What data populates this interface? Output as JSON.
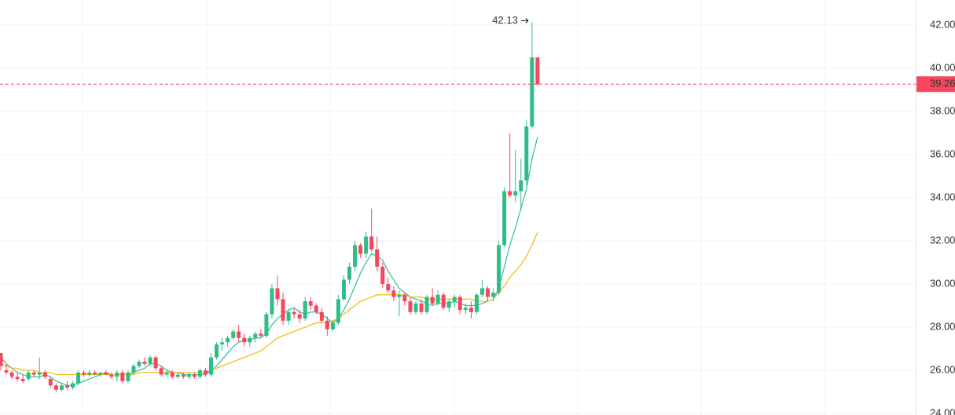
{
  "chart_data": {
    "type": "candlestick",
    "open": [
      26.8,
      26.0,
      25.9,
      25.7,
      25.6,
      25.6,
      25.9,
      25.8,
      25.9,
      25.6,
      25.3,
      25.1,
      25.3,
      25.2,
      25.4,
      25.9,
      25.8,
      25.9,
      25.8,
      25.9,
      25.8,
      25.7,
      25.9,
      25.5,
      25.9,
      26.2,
      26.4,
      26.3,
      26.6,
      26.1,
      25.8,
      25.9,
      25.7,
      25.8,
      25.7,
      25.8,
      25.7,
      26.0,
      25.8,
      26.6,
      27.2,
      27.3,
      27.5,
      27.8,
      27.5,
      27.3,
      27.5,
      27.7,
      27.6,
      28.6,
      29.8,
      29.3,
      28.3,
      28.7,
      28.6,
      28.4,
      29.2,
      29.0,
      28.7,
      28.3,
      27.9,
      28.2,
      29.3,
      30.2,
      30.8,
      31.8,
      31.4,
      32.2,
      31.6,
      30.8,
      30.0,
      29.7,
      29.4,
      29.5,
      29.2,
      28.7,
      29.1,
      28.7,
      29.4,
      29.1,
      29.5,
      28.9,
      29.2,
      29.4,
      28.8,
      28.9,
      28.7,
      29.5,
      29.8,
      29.4,
      29.6,
      31.8,
      34.3,
      34.1,
      34.3,
      34.8,
      37.3,
      40.5
    ],
    "high": [
      26.8,
      26.3,
      26.0,
      25.9,
      25.8,
      26.0,
      26.0,
      26.6,
      26.0,
      25.7,
      25.4,
      25.4,
      25.5,
      25.5,
      26.0,
      26.0,
      26.0,
      26.0,
      25.9,
      26.0,
      25.9,
      26.0,
      26.0,
      26.0,
      26.3,
      26.5,
      26.6,
      26.7,
      26.7,
      26.2,
      26.0,
      26.0,
      25.9,
      25.9,
      25.9,
      25.9,
      26.1,
      26.1,
      26.8,
      27.3,
      27.5,
      27.6,
      27.9,
      28.1,
      27.7,
      27.6,
      27.8,
      27.9,
      28.7,
      30.0,
      30.4,
      29.6,
      28.8,
      28.9,
      28.8,
      29.4,
      29.4,
      29.1,
      28.9,
      28.5,
      28.3,
      29.5,
      30.4,
      31.0,
      32.0,
      31.9,
      32.4,
      33.5,
      32.2,
      31.0,
      30.3,
      29.9,
      29.7,
      29.6,
      29.4,
      29.2,
      29.3,
      29.5,
      29.8,
      29.7,
      29.6,
      29.3,
      29.5,
      29.5,
      29.1,
      29.2,
      29.6,
      30.2,
      29.9,
      29.8,
      32.0,
      34.5,
      37.0,
      36.2,
      35.8,
      37.6,
      42.13,
      40.5
    ],
    "low": [
      26.0,
      25.8,
      25.6,
      25.5,
      25.4,
      25.5,
      25.7,
      25.6,
      25.6,
      25.2,
      25.0,
      25.0,
      25.1,
      25.1,
      25.3,
      25.7,
      25.7,
      25.8,
      25.7,
      25.8,
      25.6,
      25.5,
      25.4,
      25.4,
      25.8,
      26.1,
      26.2,
      26.2,
      26.0,
      25.7,
      25.7,
      25.6,
      25.6,
      25.6,
      25.6,
      25.6,
      25.6,
      25.7,
      25.7,
      26.5,
      26.9,
      27.1,
      27.4,
      27.3,
      27.1,
      27.1,
      27.3,
      27.5,
      27.5,
      28.4,
      29.0,
      28.1,
      28.1,
      28.4,
      28.2,
      28.3,
      28.8,
      28.6,
      28.2,
      27.6,
      27.8,
      28.1,
      29.2,
      30.0,
      30.6,
      31.2,
      31.2,
      31.5,
      30.6,
      29.8,
      29.6,
      29.2,
      28.5,
      29.0,
      28.6,
      28.6,
      28.6,
      28.6,
      29.0,
      29.0,
      28.8,
      28.7,
      28.9,
      28.6,
      28.6,
      28.4,
      28.6,
      29.4,
      29.2,
      29.2,
      29.5,
      31.7,
      34.0,
      33.8,
      33.4,
      34.6,
      37.2,
      39.2
    ],
    "close": [
      26.2,
      25.9,
      25.7,
      25.6,
      25.5,
      25.9,
      25.8,
      25.9,
      25.7,
      25.3,
      25.1,
      25.3,
      25.2,
      25.4,
      25.9,
      25.8,
      25.9,
      25.8,
      25.9,
      25.8,
      25.7,
      25.9,
      25.5,
      25.9,
      26.2,
      26.4,
      26.3,
      26.6,
      26.1,
      25.8,
      25.9,
      25.7,
      25.8,
      25.7,
      25.8,
      25.7,
      26.0,
      25.8,
      26.6,
      27.2,
      27.3,
      27.5,
      27.8,
      27.5,
      27.3,
      27.5,
      27.7,
      27.6,
      28.6,
      29.8,
      29.3,
      28.3,
      28.7,
      28.6,
      28.4,
      29.2,
      29.0,
      28.7,
      28.3,
      27.9,
      28.2,
      29.3,
      30.2,
      30.8,
      31.8,
      31.4,
      32.2,
      31.6,
      30.8,
      30.0,
      29.7,
      29.4,
      29.5,
      29.2,
      28.7,
      29.1,
      28.7,
      29.4,
      29.1,
      29.5,
      28.9,
      29.2,
      29.4,
      28.8,
      28.9,
      28.7,
      29.5,
      29.8,
      29.4,
      29.6,
      31.8,
      34.3,
      34.1,
      34.3,
      34.8,
      37.3,
      40.5,
      39.26
    ],
    "up_color": "#2ebd85",
    "down_color": "#f6465d",
    "series": [
      {
        "color": "#2bbfa0",
        "values": [
          26.6,
          26.3,
          26.1,
          25.9,
          25.8,
          25.7,
          25.7,
          25.7,
          25.8,
          25.7,
          25.5,
          25.4,
          25.3,
          25.3,
          25.4,
          25.5,
          25.6,
          25.7,
          25.8,
          25.9,
          25.8,
          25.8,
          25.8,
          25.8,
          25.9,
          26.0,
          26.1,
          26.3,
          26.3,
          26.2,
          26.0,
          25.9,
          25.9,
          25.8,
          25.8,
          25.8,
          25.8,
          25.8,
          26.0,
          26.2,
          26.5,
          26.8,
          27.1,
          27.3,
          27.4,
          27.4,
          27.5,
          27.5,
          27.7,
          28.1,
          28.4,
          28.6,
          28.8,
          28.9,
          28.7,
          28.6,
          28.7,
          28.7,
          28.6,
          28.4,
          28.2,
          28.4,
          28.8,
          29.3,
          29.9,
          30.5,
          31.0,
          31.4,
          31.3,
          31.1,
          30.6,
          30.2,
          29.8,
          29.6,
          29.4,
          29.3,
          29.2,
          29.1,
          29.0,
          29.1,
          29.1,
          29.1,
          29.2,
          29.1,
          29.0,
          29.0,
          29.0,
          29.1,
          29.2,
          29.3,
          29.8,
          30.8,
          31.8,
          32.6,
          33.5,
          34.4,
          35.8,
          36.8
        ]
      },
      {
        "color": "#f0b90b",
        "values": [
          26.3,
          26.2,
          26.1,
          26.1,
          26.0,
          26.0,
          26.0,
          25.9,
          25.9,
          25.9,
          25.8,
          25.8,
          25.8,
          25.8,
          25.8,
          25.8,
          25.8,
          25.8,
          25.8,
          25.8,
          25.8,
          25.8,
          25.8,
          25.8,
          25.8,
          25.9,
          25.9,
          25.9,
          25.9,
          25.9,
          25.9,
          25.9,
          25.9,
          25.9,
          25.9,
          25.9,
          25.9,
          25.9,
          26.0,
          26.1,
          26.2,
          26.3,
          26.4,
          26.5,
          26.6,
          26.7,
          26.8,
          26.9,
          27.1,
          27.3,
          27.5,
          27.6,
          27.7,
          27.8,
          27.9,
          28.0,
          28.1,
          28.2,
          28.2,
          28.2,
          28.3,
          28.4,
          28.6,
          28.8,
          29.0,
          29.2,
          29.3,
          29.4,
          29.5,
          29.5,
          29.5,
          29.5,
          29.5,
          29.5,
          29.4,
          29.4,
          29.4,
          29.3,
          29.3,
          29.3,
          29.3,
          29.3,
          29.3,
          29.3,
          29.3,
          29.3,
          29.2,
          29.2,
          29.2,
          29.3,
          29.6,
          29.9,
          30.3,
          30.6,
          30.9,
          31.3,
          31.8,
          32.4
        ]
      }
    ],
    "ylim": [
      23.93,
      43.16
    ],
    "yticks": [
      {
        "value": 24,
        "label": "24.00"
      },
      {
        "value": 26,
        "label": "26.00"
      },
      {
        "value": 28,
        "label": "28.00"
      },
      {
        "value": 30,
        "label": "30.00"
      },
      {
        "value": 32,
        "label": "32.00"
      },
      {
        "value": 34,
        "label": "34.00"
      },
      {
        "value": 36,
        "label": "36.00"
      },
      {
        "value": 38,
        "label": "38.00"
      },
      {
        "value": 40,
        "label": "40.00"
      },
      {
        "value": 42,
        "label": "42.00"
      }
    ],
    "grid": true
  }
}
